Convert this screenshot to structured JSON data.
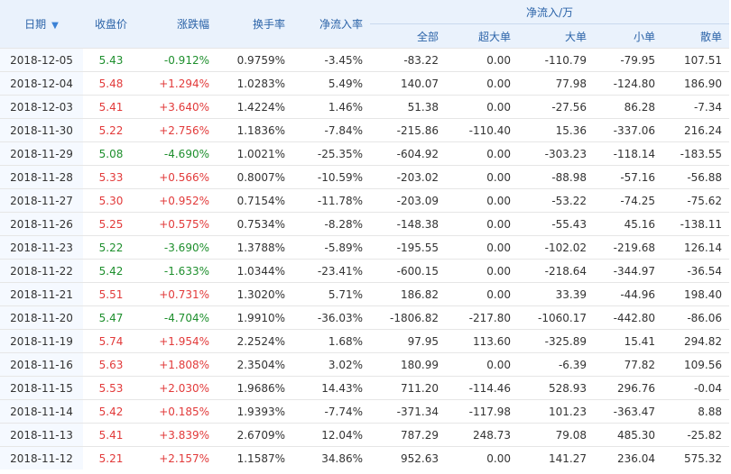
{
  "headers": {
    "date": "日期",
    "sort_icon": "down-arrow-icon",
    "close": "收盘价",
    "change": "涨跌幅",
    "turnover": "换手率",
    "net_inflow_rate": "净流入率",
    "net_inflow_group": "净流入/万",
    "all": "全部",
    "xl": "超大单",
    "large": "大单",
    "small": "小单",
    "retail": "散单"
  },
  "colors": {
    "up": "#e23a3a",
    "down": "#1e8f2d",
    "header_bg": "#eaf2fc",
    "header_text": "#2b63a8"
  },
  "rows": [
    {
      "date": "2018-12-05",
      "close": "5.43",
      "change": "-0.912%",
      "turnover": "0.9759%",
      "rate": "-3.45%",
      "all": "-83.22",
      "xl": "0.00",
      "large": "-110.79",
      "small": "-79.95",
      "retail": "107.51",
      "dir": "down"
    },
    {
      "date": "2018-12-04",
      "close": "5.48",
      "change": "+1.294%",
      "turnover": "1.0283%",
      "rate": "5.49%",
      "all": "140.07",
      "xl": "0.00",
      "large": "77.98",
      "small": "-124.80",
      "retail": "186.90",
      "dir": "up"
    },
    {
      "date": "2018-12-03",
      "close": "5.41",
      "change": "+3.640%",
      "turnover": "1.4224%",
      "rate": "1.46%",
      "all": "51.38",
      "xl": "0.00",
      "large": "-27.56",
      "small": "86.28",
      "retail": "-7.34",
      "dir": "up"
    },
    {
      "date": "2018-11-30",
      "close": "5.22",
      "change": "+2.756%",
      "turnover": "1.1836%",
      "rate": "-7.84%",
      "all": "-215.86",
      "xl": "-110.40",
      "large": "15.36",
      "small": "-337.06",
      "retail": "216.24",
      "dir": "up"
    },
    {
      "date": "2018-11-29",
      "close": "5.08",
      "change": "-4.690%",
      "turnover": "1.0021%",
      "rate": "-25.35%",
      "all": "-604.92",
      "xl": "0.00",
      "large": "-303.23",
      "small": "-118.14",
      "retail": "-183.55",
      "dir": "down"
    },
    {
      "date": "2018-11-28",
      "close": "5.33",
      "change": "+0.566%",
      "turnover": "0.8007%",
      "rate": "-10.59%",
      "all": "-203.02",
      "xl": "0.00",
      "large": "-88.98",
      "small": "-57.16",
      "retail": "-56.88",
      "dir": "up"
    },
    {
      "date": "2018-11-27",
      "close": "5.30",
      "change": "+0.952%",
      "turnover": "0.7154%",
      "rate": "-11.78%",
      "all": "-203.09",
      "xl": "0.00",
      "large": "-53.22",
      "small": "-74.25",
      "retail": "-75.62",
      "dir": "up"
    },
    {
      "date": "2018-11-26",
      "close": "5.25",
      "change": "+0.575%",
      "turnover": "0.7534%",
      "rate": "-8.28%",
      "all": "-148.38",
      "xl": "0.00",
      "large": "-55.43",
      "small": "45.16",
      "retail": "-138.11",
      "dir": "up"
    },
    {
      "date": "2018-11-23",
      "close": "5.22",
      "change": "-3.690%",
      "turnover": "1.3788%",
      "rate": "-5.89%",
      "all": "-195.55",
      "xl": "0.00",
      "large": "-102.02",
      "small": "-219.68",
      "retail": "126.14",
      "dir": "down"
    },
    {
      "date": "2018-11-22",
      "close": "5.42",
      "change": "-1.633%",
      "turnover": "1.0344%",
      "rate": "-23.41%",
      "all": "-600.15",
      "xl": "0.00",
      "large": "-218.64",
      "small": "-344.97",
      "retail": "-36.54",
      "dir": "down"
    },
    {
      "date": "2018-11-21",
      "close": "5.51",
      "change": "+0.731%",
      "turnover": "1.3020%",
      "rate": "5.71%",
      "all": "186.82",
      "xl": "0.00",
      "large": "33.39",
      "small": "-44.96",
      "retail": "198.40",
      "dir": "up"
    },
    {
      "date": "2018-11-20",
      "close": "5.47",
      "change": "-4.704%",
      "turnover": "1.9910%",
      "rate": "-36.03%",
      "all": "-1806.82",
      "xl": "-217.80",
      "large": "-1060.17",
      "small": "-442.80",
      "retail": "-86.06",
      "dir": "down"
    },
    {
      "date": "2018-11-19",
      "close": "5.74",
      "change": "+1.954%",
      "turnover": "2.2524%",
      "rate": "1.68%",
      "all": "97.95",
      "xl": "113.60",
      "large": "-325.89",
      "small": "15.41",
      "retail": "294.82",
      "dir": "up"
    },
    {
      "date": "2018-11-16",
      "close": "5.63",
      "change": "+1.808%",
      "turnover": "2.3504%",
      "rate": "3.02%",
      "all": "180.99",
      "xl": "0.00",
      "large": "-6.39",
      "small": "77.82",
      "retail": "109.56",
      "dir": "up"
    },
    {
      "date": "2018-11-15",
      "close": "5.53",
      "change": "+2.030%",
      "turnover": "1.9686%",
      "rate": "14.43%",
      "all": "711.20",
      "xl": "-114.46",
      "large": "528.93",
      "small": "296.76",
      "retail": "-0.04",
      "dir": "up"
    },
    {
      "date": "2018-11-14",
      "close": "5.42",
      "change": "+0.185%",
      "turnover": "1.9393%",
      "rate": "-7.74%",
      "all": "-371.34",
      "xl": "-117.98",
      "large": "101.23",
      "small": "-363.47",
      "retail": "8.88",
      "dir": "up"
    },
    {
      "date": "2018-11-13",
      "close": "5.41",
      "change": "+3.839%",
      "turnover": "2.6709%",
      "rate": "12.04%",
      "all": "787.29",
      "xl": "248.73",
      "large": "79.08",
      "small": "485.30",
      "retail": "-25.82",
      "dir": "up"
    },
    {
      "date": "2018-11-12",
      "close": "5.21",
      "change": "+2.157%",
      "turnover": "1.1587%",
      "rate": "34.86%",
      "all": "952.63",
      "xl": "0.00",
      "large": "141.27",
      "small": "236.04",
      "retail": "575.32",
      "dir": "up"
    }
  ]
}
